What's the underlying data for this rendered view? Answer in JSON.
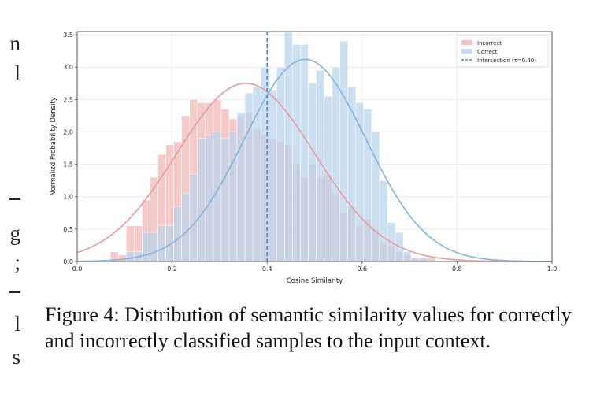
{
  "margin_glyphs": [
    {
      "text": "n"
    },
    {
      "text": "l"
    },
    {
      "text": "g"
    },
    {
      "text": ";"
    },
    {
      "text": "l"
    },
    {
      "text": "s"
    }
  ],
  "figure": {
    "caption": "Figure 4: Distribution of semantic similarity values for correctly and incorrectly classified samples to the input context."
  },
  "chart_data": {
    "type": "bar",
    "title": "",
    "xlabel": "Cosine Similarity",
    "ylabel": "Normalizd Probability Density",
    "xlim": [
      0.0,
      1.0
    ],
    "ylim": [
      0.0,
      3.55
    ],
    "xticks": [
      "0.0",
      "0.2",
      "0.4",
      "0.6",
      "0.8",
      "1.0"
    ],
    "yticks": [
      "0.0",
      "0.5",
      "1.0",
      "1.5",
      "2.0",
      "2.5",
      "3.0",
      "3.5"
    ],
    "grid": true,
    "legend_position": "top-right",
    "bin_edges": [
      0.07,
      0.0867,
      0.1033,
      0.12,
      0.1367,
      0.1533,
      0.17,
      0.1867,
      0.2033,
      0.22,
      0.2367,
      0.2533,
      0.27,
      0.2867,
      0.3033,
      0.32,
      0.3367,
      0.3533,
      0.37,
      0.3867,
      0.4033,
      0.42,
      0.4367,
      0.4533,
      0.47,
      0.4867,
      0.5033,
      0.52,
      0.5367,
      0.5533,
      0.57,
      0.5867,
      0.6033,
      0.62,
      0.6367,
      0.6533,
      0.67,
      0.6867,
      0.7033,
      0.72,
      0.7367,
      0.7533
    ],
    "series": [
      {
        "name": "Incorrect",
        "color": "#f4b6b6",
        "values": [
          0.15,
          0.1,
          0.55,
          0.55,
          0.95,
          1.3,
          1.65,
          1.8,
          1.85,
          2.25,
          2.5,
          2.45,
          2.45,
          2.5,
          2.35,
          2.2,
          2.25,
          2.3,
          2.05,
          1.95,
          1.9,
          1.85,
          1.8,
          1.5,
          1.3,
          1.5,
          1.3,
          1.35,
          1.05,
          0.75,
          0.85,
          0.55,
          0.65,
          0.5,
          0.3,
          0.25,
          0.15,
          0.1,
          0.05,
          0.05,
          0.05
        ],
        "fit_curve": {
          "label": "Incorrect fit",
          "color": "#e89a9a",
          "mean": 0.355,
          "peak": 2.75
        }
      },
      {
        "name": "Correct",
        "color": "#b8d4ec",
        "values": [
          0.0,
          0.0,
          0.15,
          0.15,
          0.45,
          0.45,
          0.55,
          0.55,
          0.85,
          1.05,
          1.35,
          1.9,
          1.95,
          2.0,
          1.9,
          2.0,
          2.3,
          2.6,
          2.7,
          3.0,
          2.65,
          3.0,
          3.55,
          3.35,
          3.35,
          2.75,
          2.95,
          2.55,
          3.0,
          3.4,
          2.7,
          2.45,
          2.35,
          2.0,
          1.25,
          0.6,
          0.45,
          0.15,
          0.05,
          0.05,
          0.0
        ],
        "fit_curve": {
          "label": "Correct fit",
          "color": "#7fb4de",
          "mean": 0.48,
          "peak": 3.12
        }
      }
    ],
    "intersection": {
      "name": "Intersection (τ=0.40)",
      "x": 0.4,
      "color": "#3a8fd6",
      "style": "dashed"
    }
  }
}
